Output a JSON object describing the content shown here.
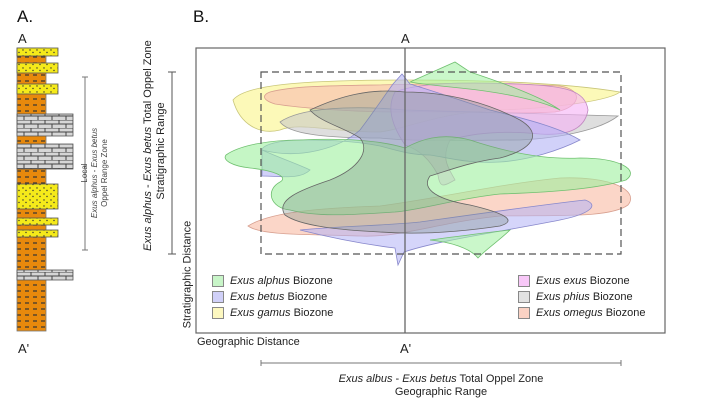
{
  "panel_a": {
    "label": "A.",
    "top_marker": "A",
    "bottom_marker": "A'",
    "range_label": {
      "line1": "Local",
      "line2_italic1": "Exus alphus",
      "line2_sep": " - ",
      "line2_italic2": "Exus betus",
      "line3": "Oppel Range Zone"
    },
    "lithology_colors": {
      "sandstone": "#f5ea1a",
      "shale": "#e8890c",
      "limestone": "#cfcfcf"
    }
  },
  "panel_b": {
    "label": "B.",
    "top_marker": "A",
    "bottom_marker": "A'",
    "y_axis_label": "Stratigraphic Distance",
    "x_axis_label": "Geographic Distance",
    "vertical_range": {
      "italic1": "Exus alphus",
      "sep": " - ",
      "italic2": "Exus betus",
      "rest": " Total Oppel Zone",
      "line2": "Stratigraphic Range"
    },
    "horizontal_range": {
      "italic1": "Exus albus",
      "sep": " - ",
      "italic2": "Exus betus",
      "rest": " Total Oppel Zone",
      "line2": "Geographic Range"
    },
    "legend": [
      {
        "genus_species": "Exus alphus",
        "suffix": " Biozone",
        "color": "#9ff09f"
      },
      {
        "genus_species": "Exus betus",
        "suffix": " Biozone",
        "color": "#b3b3f5"
      },
      {
        "genus_species": "Exus gamus",
        "suffix": " Biozone",
        "color": "#fbf7a0"
      },
      {
        "genus_species": "Exus exus",
        "suffix": " Biozone",
        "color": "#f5b0f5"
      },
      {
        "genus_species": "Exus phius",
        "suffix": " Biozone",
        "color": "#d8d8d8"
      },
      {
        "genus_species": "Exus omegus",
        "suffix": " Biozone",
        "color": "#f9c4b0"
      }
    ]
  }
}
